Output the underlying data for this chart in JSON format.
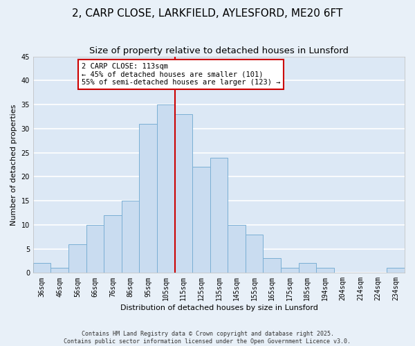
{
  "title": "2, CARP CLOSE, LARKFIELD, AYLESFORD, ME20 6FT",
  "subtitle": "Size of property relative to detached houses in Lunsford",
  "xlabel": "Distribution of detached houses by size in Lunsford",
  "ylabel": "Number of detached properties",
  "bar_labels": [
    "36sqm",
    "46sqm",
    "56sqm",
    "66sqm",
    "76sqm",
    "86sqm",
    "95sqm",
    "105sqm",
    "115sqm",
    "125sqm",
    "135sqm",
    "145sqm",
    "155sqm",
    "165sqm",
    "175sqm",
    "185sqm",
    "194sqm",
    "204sqm",
    "214sqm",
    "224sqm",
    "234sqm"
  ],
  "bar_values": [
    2,
    1,
    6,
    10,
    12,
    15,
    31,
    35,
    33,
    22,
    24,
    10,
    8,
    3,
    1,
    2,
    1,
    0,
    0,
    0,
    1
  ],
  "bar_color": "#c9dcf0",
  "bar_edge_color": "#7aafd4",
  "background_color": "#dce8f5",
  "fig_background_color": "#e8f0f8",
  "grid_color": "#ffffff",
  "vline_color": "#cc0000",
  "annotation_text": "2 CARP CLOSE: 113sqm\n← 45% of detached houses are smaller (101)\n55% of semi-detached houses are larger (123) →",
  "annotation_box_color": "#ffffff",
  "annotation_border_color": "#cc0000",
  "ylim": [
    0,
    45
  ],
  "yticks": [
    0,
    5,
    10,
    15,
    20,
    25,
    30,
    35,
    40,
    45
  ],
  "footer_line1": "Contains HM Land Registry data © Crown copyright and database right 2025.",
  "footer_line2": "Contains public sector information licensed under the Open Government Licence v3.0.",
  "title_fontsize": 11,
  "subtitle_fontsize": 9.5,
  "axis_label_fontsize": 8,
  "tick_fontsize": 7,
  "annotation_fontsize": 7.5,
  "footer_fontsize": 6,
  "vline_x_index": 7.5
}
